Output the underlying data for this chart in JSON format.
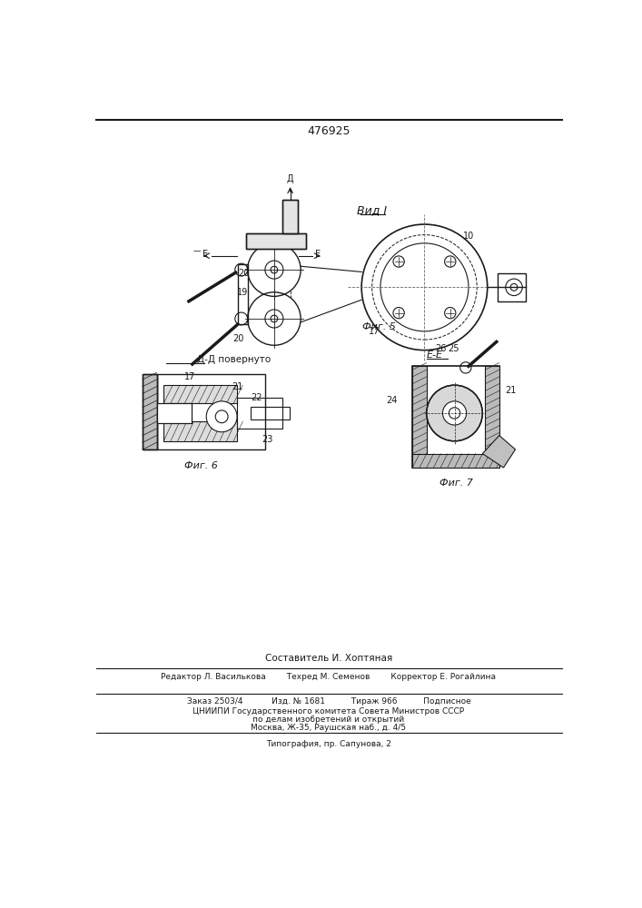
{
  "patent_number": "476925",
  "view_label": "Вид I",
  "fig5_label": "Фиг. 5",
  "fig6_label": "Фиг. 6",
  "fig7_label": "Фиг. 7",
  "dd_label": "Д-Д повернуто",
  "ee_label": "Е-Е",
  "footer_line1": "Составитель И. Хоптяная",
  "footer_line2": "Редактор Л. Василькова        Техред М. Семенов        Корректор Е. Рогайлина",
  "footer_line3": "Заказ 2503/4           Изд. № 1681          Тираж 966          Подписное",
  "footer_line4": "ЦНИИПИ Государственного комитета Совета Министров СССР",
  "footer_line5": "по делам изобретений и открытий",
  "footer_line6": "Москва, Ж-35, Раушская наб., д. 4/5",
  "footer_line7": "Типография, пр. Сапунова, 2",
  "bg_color": "#ffffff",
  "line_color": "#1a1a1a"
}
